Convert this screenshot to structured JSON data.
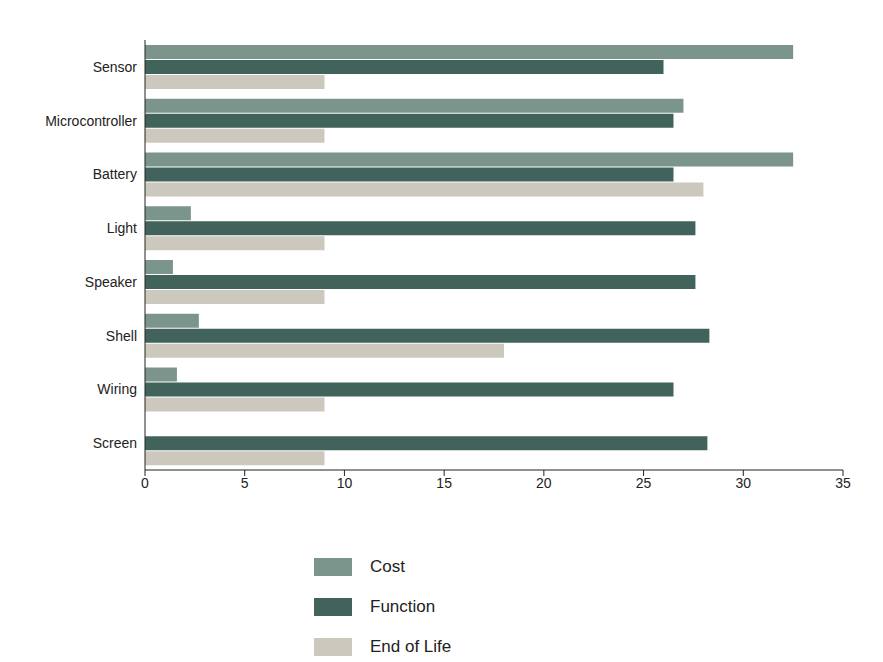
{
  "chart_data": {
    "type": "bar",
    "orientation": "horizontal",
    "categories": [
      "Sensor",
      "Microcontroller",
      "Battery",
      "Light",
      "Speaker",
      "Shell",
      "Wiring",
      "Screen"
    ],
    "series": [
      {
        "name": "Cost",
        "color": "#7b948c",
        "values": [
          32.5,
          27,
          32.5,
          2.3,
          1.4,
          2.7,
          1.6,
          0
        ]
      },
      {
        "name": "Function",
        "color": "#42635b",
        "values": [
          26,
          26.5,
          26.5,
          27.6,
          27.6,
          28.3,
          26.5,
          28.2
        ]
      },
      {
        "name": "End of Life",
        "color": "#cdc8bd",
        "values": [
          9,
          9,
          28,
          9,
          9,
          18,
          9,
          9
        ]
      }
    ],
    "xlim": [
      0,
      35
    ],
    "xticks": [
      0,
      5,
      10,
      15,
      20,
      25,
      30,
      35
    ],
    "grid": false,
    "legend": "bottom"
  }
}
